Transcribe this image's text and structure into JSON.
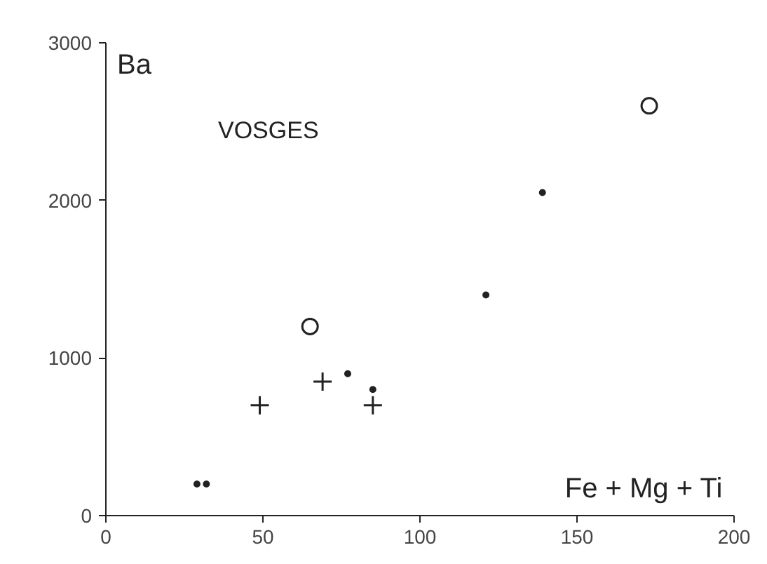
{
  "chart_data": {
    "type": "scatter",
    "title": "VOSGES",
    "xlabel": "Fe + Mg + Ti",
    "ylabel": "Ba",
    "xlim": [
      0,
      200
    ],
    "ylim": [
      0,
      3000
    ],
    "xticks": [
      0,
      50,
      100,
      150,
      200
    ],
    "yticks": [
      0,
      1000,
      2000,
      3000
    ],
    "grid": false,
    "series": [
      {
        "color": "#222222",
        "marker": "circle",
        "x": [
          173,
          65
        ],
        "values": [
          2600,
          1200
        ]
      },
      {
        "color": "#222222",
        "marker": "dot",
        "x": [
          139,
          121,
          77,
          85,
          29,
          32
        ],
        "values": [
          2050,
          1400,
          900,
          800,
          200,
          200
        ]
      },
      {
        "color": "#222222",
        "marker": "cross",
        "x": [
          49,
          69,
          85
        ],
        "values": [
          700,
          850,
          700
        ]
      }
    ]
  }
}
